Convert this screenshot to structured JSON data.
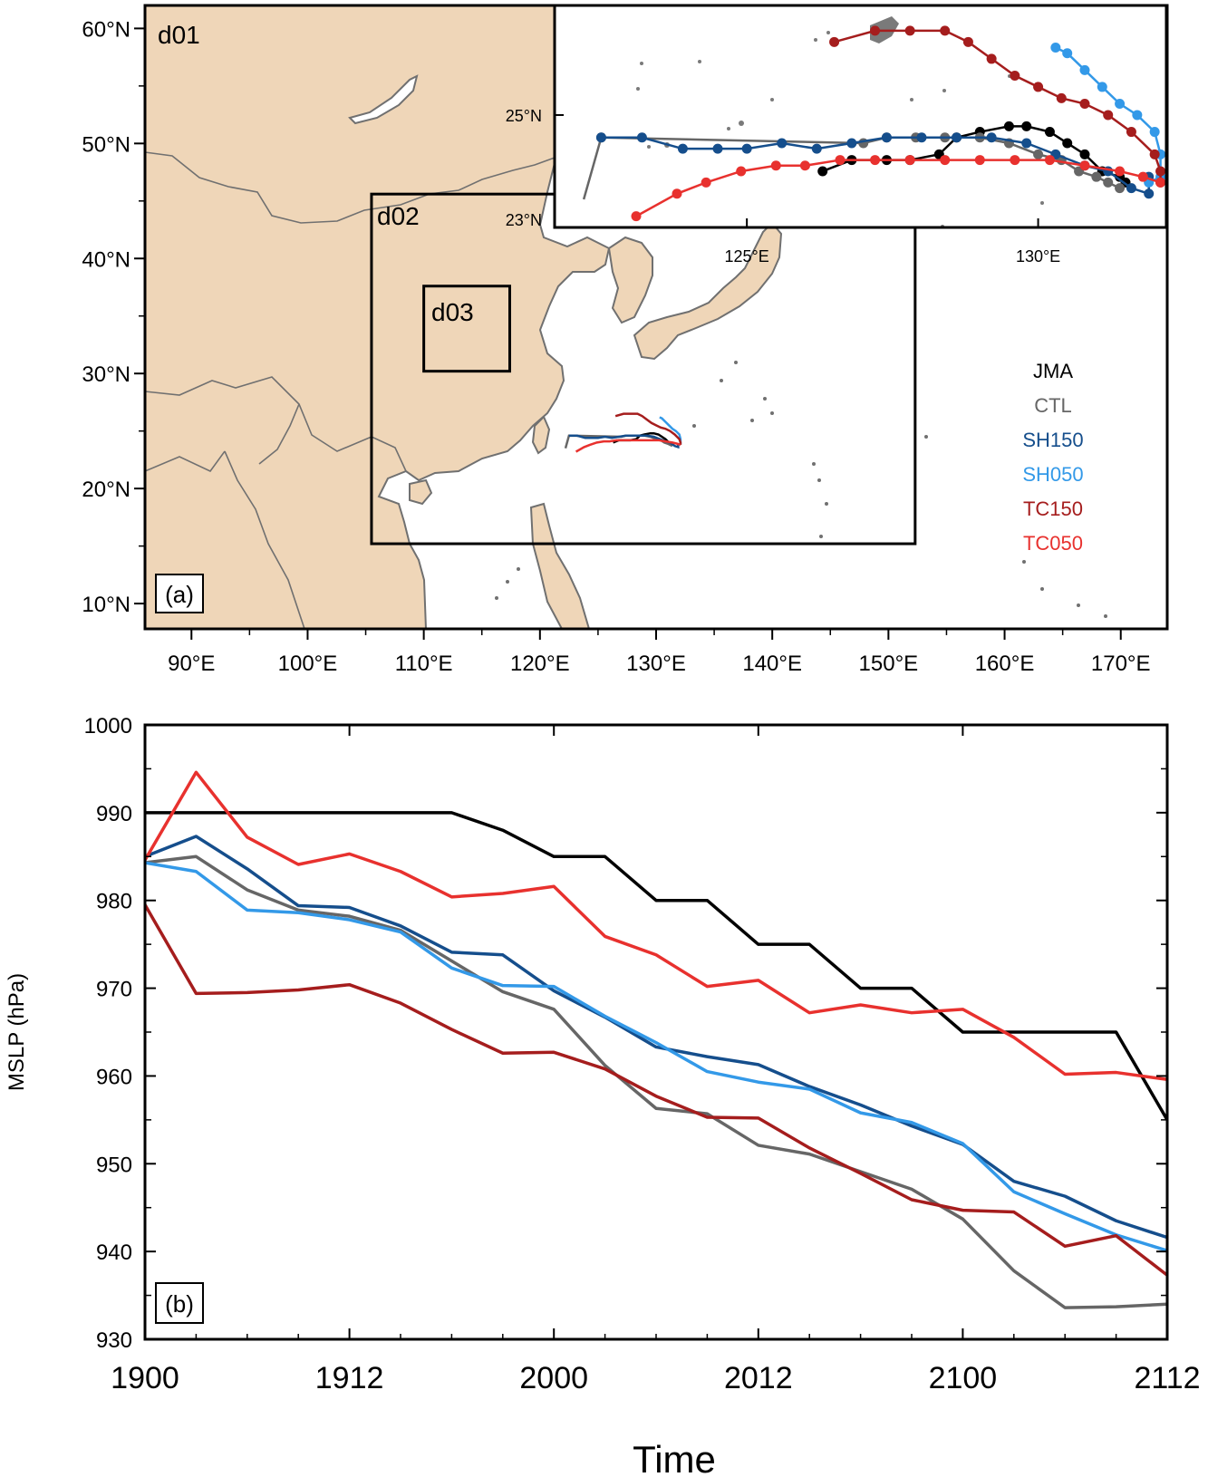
{
  "chart_data": [
    {
      "type": "map",
      "panel_label": "(a)",
      "domain_labels": [
        "d01",
        "d02",
        "d03"
      ],
      "lat_ticks": [
        "60°N",
        "50°N",
        "40°N",
        "30°N",
        "20°N",
        "10°N"
      ],
      "lat_values": [
        60,
        50,
        40,
        30,
        20,
        10
      ],
      "lon_ticks": [
        "90°E",
        "100°E",
        "110°E",
        "120°E",
        "130°E",
        "140°E",
        "150°E",
        "160°E",
        "170°E"
      ],
      "lon_values": [
        90,
        100,
        110,
        120,
        130,
        140,
        150,
        160,
        170
      ],
      "xlim": [
        86,
        174
      ],
      "ylim": [
        7.8,
        62
      ],
      "domains": [
        {
          "name": "d01",
          "lon": [
            86,
            174
          ],
          "lat": [
            7.8,
            62
          ]
        },
        {
          "name": "d02",
          "lon": [
            105.5,
            152.3
          ],
          "lat": [
            15.2,
            45.6
          ]
        },
        {
          "name": "d03",
          "lon": [
            110,
            117.4
          ],
          "lat": [
            30.2,
            37.6
          ]
        }
      ],
      "inset": {
        "lat_ticks": [
          "25°N",
          "23°N"
        ],
        "lat_values": [
          25,
          23
        ],
        "lon_ticks": [
          "125°E",
          "130°E"
        ],
        "lon_values": [
          125,
          130
        ],
        "xlim": [
          121.7,
          132.2
        ],
        "ylim": [
          23,
          26.95
        ]
      },
      "legend": [
        "JMA",
        "CTL",
        "SH150",
        "SH050",
        "TC150",
        "TC050"
      ],
      "tracks": [
        {
          "name": "JMA",
          "color": "#000000",
          "lon": [
            126.3,
            126.8,
            127.4,
            127.8,
            128.3,
            128.6,
            129.0,
            129.5,
            129.8,
            130.2,
            130.5,
            130.8,
            131.1,
            131.4,
            131.5
          ],
          "lat": [
            24.0,
            24.2,
            24.2,
            24.2,
            24.3,
            24.6,
            24.7,
            24.8,
            24.8,
            24.7,
            24.5,
            24.3,
            24.0,
            23.9,
            23.8
          ]
        },
        {
          "name": "CTL",
          "color": "#666666",
          "lon": [
            122.2,
            122.5,
            127.0,
            127.4,
            127.9,
            128.4,
            129.0,
            129.5,
            130.0,
            130.4,
            130.7,
            131.0,
            131.2,
            131.4
          ],
          "lat": [
            23.5,
            24.6,
            24.5,
            24.6,
            24.6,
            24.6,
            24.6,
            24.5,
            24.3,
            24.2,
            24.0,
            23.9,
            23.8,
            23.7
          ]
        },
        {
          "name": "SH150",
          "color": "#154e8c",
          "lon": [
            122.5,
            123.2,
            123.9,
            124.5,
            125.0,
            125.6,
            126.2,
            126.8,
            127.4,
            128.0,
            128.6,
            129.2,
            129.8,
            130.3,
            130.8,
            131.2,
            131.6,
            131.9,
            131.9
          ],
          "lat": [
            24.6,
            24.6,
            24.4,
            24.4,
            24.4,
            24.5,
            24.4,
            24.5,
            24.6,
            24.6,
            24.6,
            24.6,
            24.5,
            24.3,
            24.1,
            24.0,
            23.7,
            23.6,
            23.9
          ]
        },
        {
          "name": "SH050",
          "color": "#3399e8",
          "lon": [
            130.3,
            130.5,
            130.8,
            131.1,
            131.4,
            131.7,
            132.0,
            132.1,
            132.1,
            131.9
          ],
          "lat": [
            26.2,
            26.1,
            25.8,
            25.5,
            25.2,
            25.0,
            24.7,
            24.3,
            23.9,
            23.8
          ]
        },
        {
          "name": "TC150",
          "color": "#a51d1d",
          "lon": [
            126.5,
            127.2,
            127.8,
            128.4,
            128.8,
            129.2,
            129.6,
            130.0,
            130.4,
            130.8,
            131.2,
            131.6,
            132.0,
            132.1,
            132.1
          ],
          "lat": [
            26.3,
            26.5,
            26.5,
            26.5,
            26.3,
            26.0,
            25.7,
            25.5,
            25.3,
            25.2,
            25.0,
            24.7,
            24.3,
            24.0,
            23.8
          ]
        },
        {
          "name": "TC050",
          "color": "#e8312e",
          "lon": [
            123.1,
            123.8,
            124.3,
            124.9,
            125.5,
            126.0,
            126.6,
            127.2,
            127.8,
            128.4,
            129.0,
            129.6,
            130.2,
            130.8,
            131.4,
            131.8,
            132.1
          ],
          "lat": [
            23.2,
            23.6,
            23.8,
            24.0,
            24.1,
            24.1,
            24.2,
            24.2,
            24.2,
            24.2,
            24.2,
            24.2,
            24.2,
            24.1,
            24.0,
            23.9,
            23.8
          ]
        }
      ]
    },
    {
      "type": "line",
      "panel_label": "(b)",
      "xlabel": "Time",
      "ylabel": "MSLP (hPa)",
      "x_tick_labels": [
        "1900",
        "1912",
        "2000",
        "2012",
        "2100",
        "2112"
      ],
      "x_tick_positions": [
        0,
        4,
        8,
        12,
        16,
        20
      ],
      "xlim": [
        0,
        20
      ],
      "ylim": [
        930,
        1000
      ],
      "y_ticks": [
        930,
        940,
        950,
        960,
        970,
        980,
        990,
        1000
      ],
      "x": [
        0,
        1,
        2,
        3,
        4,
        5,
        6,
        7,
        8,
        9,
        10,
        11,
        12,
        13,
        14,
        15,
        16,
        17,
        18,
        19,
        20
      ],
      "series": [
        {
          "name": "JMA",
          "color": "#000000",
          "values": [
            990,
            990,
            990,
            990,
            990,
            990,
            990,
            988,
            985,
            985,
            980,
            980,
            975,
            975,
            970,
            970,
            965,
            965,
            965,
            965,
            955
          ]
        },
        {
          "name": "CTL",
          "color": "#666666",
          "values": [
            984.3,
            985,
            981.2,
            978.9,
            978.2,
            976.6,
            973.1,
            969.6,
            967.6,
            961.2,
            956.3,
            955.7,
            952.1,
            951.1,
            949.1,
            947.1,
            943.7,
            937.8,
            933.6,
            933.7,
            934
          ]
        },
        {
          "name": "SH150",
          "color": "#154e8c",
          "values": [
            985,
            987.3,
            983.6,
            979.4,
            979.2,
            977.1,
            974.1,
            973.8,
            969.7,
            966.7,
            963.3,
            962.2,
            961.3,
            958.8,
            956.7,
            954.3,
            952.2,
            948,
            946.3,
            943.5,
            941.6
          ]
        },
        {
          "name": "SH050",
          "color": "#3399e8",
          "values": [
            984.3,
            983.3,
            978.9,
            978.6,
            977.8,
            976.4,
            972.3,
            970.3,
            970.2,
            966.8,
            963.8,
            960.5,
            959.3,
            958.5,
            955.8,
            954.7,
            952.3,
            946.8,
            944.3,
            941.9,
            940.1
          ]
        },
        {
          "name": "TC150",
          "color": "#a51d1d",
          "values": [
            979.5,
            969.4,
            969.5,
            969.8,
            970.4,
            968.3,
            965.3,
            962.6,
            962.7,
            960.8,
            957.7,
            955.3,
            955.2,
            951.8,
            948.9,
            945.9,
            944.7,
            944.5,
            940.6,
            941.8,
            937.3
          ]
        },
        {
          "name": "TC050",
          "color": "#e8312e",
          "values": [
            984.6,
            994.6,
            987.2,
            984.1,
            985.3,
            983.3,
            980.4,
            980.8,
            981.6,
            975.9,
            973.8,
            970.2,
            970.9,
            967.2,
            968.1,
            967.2,
            967.6,
            964.4,
            960.2,
            960.4,
            959.6
          ]
        }
      ]
    }
  ]
}
